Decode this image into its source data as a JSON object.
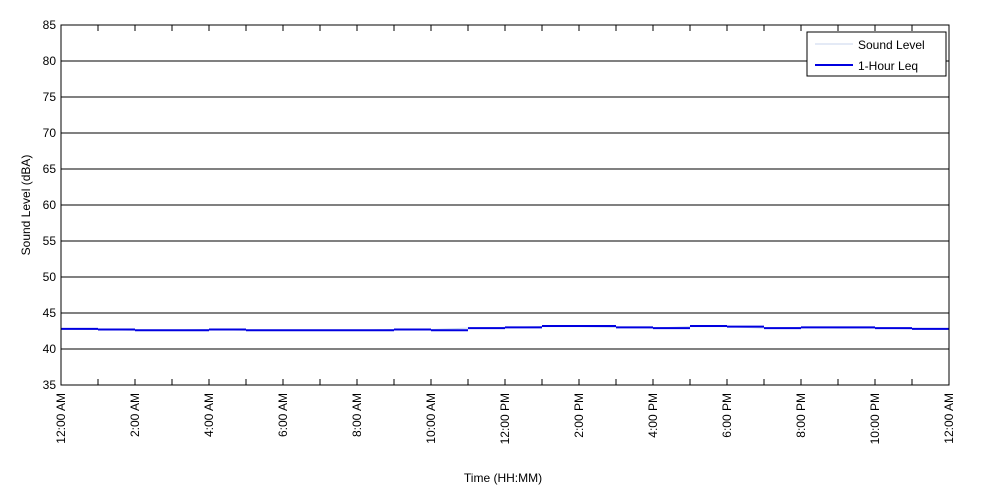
{
  "chart_data": {
    "type": "line",
    "xlabel": "Time (HH:MM)",
    "ylabel": "Sound Level (dBA)",
    "xlim": [
      0,
      24
    ],
    "ylim": [
      35,
      85
    ],
    "xticks": [
      {
        "value": 0,
        "label": "12:00 AM"
      },
      {
        "value": 2,
        "label": "2:00 AM"
      },
      {
        "value": 4,
        "label": "4:00 AM"
      },
      {
        "value": 6,
        "label": "6:00 AM"
      },
      {
        "value": 8,
        "label": "8:00 AM"
      },
      {
        "value": 10,
        "label": "10:00 AM"
      },
      {
        "value": 12,
        "label": "12:00 PM"
      },
      {
        "value": 14,
        "label": "2:00 PM"
      },
      {
        "value": 16,
        "label": "4:00 PM"
      },
      {
        "value": 18,
        "label": "6:00 PM"
      },
      {
        "value": 20,
        "label": "8:00 PM"
      },
      {
        "value": 22,
        "label": "10:00 PM"
      },
      {
        "value": 24,
        "label": "12:00 AM"
      }
    ],
    "minor_xticks": [
      1,
      3,
      5,
      7,
      9,
      11,
      13,
      15,
      17,
      19,
      21,
      23
    ],
    "yticks": [
      35,
      40,
      45,
      50,
      55,
      60,
      65,
      70,
      75,
      80,
      85
    ],
    "grid": true,
    "legend": "upper right",
    "series": [
      {
        "name": "Sound Level",
        "color": "#c8d6ee",
        "style": "line",
        "x": [
          0,
          1,
          2,
          3,
          4,
          5,
          6,
          7,
          8,
          9,
          10,
          11,
          12,
          13,
          14,
          15,
          16,
          17,
          18,
          19,
          20,
          21,
          22,
          23,
          24
        ],
        "values": [
          42.8,
          42.7,
          42.6,
          42.6,
          42.7,
          42.6,
          42.6,
          42.6,
          42.6,
          42.7,
          42.7,
          42.9,
          43.0,
          43.1,
          43.1,
          43.0,
          42.9,
          43.1,
          43.1,
          42.9,
          43.0,
          42.9,
          42.9,
          42.8,
          42.7
        ]
      },
      {
        "name": "1-Hour Leq",
        "color": "#0000e0",
        "style": "step",
        "x": [
          0,
          1,
          2,
          3,
          4,
          5,
          6,
          7,
          8,
          9,
          10,
          11,
          12,
          13,
          14,
          15,
          16,
          17,
          18,
          19,
          20,
          21,
          22,
          23
        ],
        "values": [
          42.8,
          42.7,
          42.6,
          42.6,
          42.7,
          42.6,
          42.6,
          42.6,
          42.6,
          42.7,
          42.6,
          42.9,
          43.0,
          43.2,
          43.2,
          43.0,
          42.9,
          43.2,
          43.1,
          42.9,
          43.0,
          43.0,
          42.9,
          42.8
        ]
      }
    ]
  }
}
